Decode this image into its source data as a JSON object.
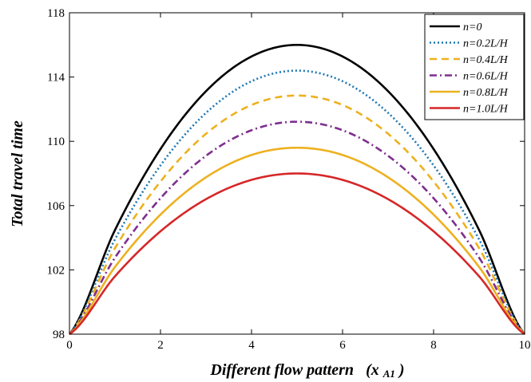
{
  "chart_data": {
    "type": "line",
    "xlabel": "Different flow pattern",
    "xlabel_var": "(x",
    "xlabel_sub": "A1",
    "xlabel_close": ")",
    "ylabel": "Total travel time",
    "xlim": [
      0,
      10
    ],
    "ylim": [
      98,
      118
    ],
    "xticks": [
      0,
      2,
      4,
      6,
      8,
      10
    ],
    "yticks": [
      98,
      102,
      106,
      110,
      114,
      118
    ],
    "grid": false,
    "legend_position": "top-right",
    "x": [
      0,
      1,
      2,
      3,
      4,
      5,
      6,
      7,
      8,
      9,
      10
    ],
    "series": [
      {
        "name": "n=0",
        "color": "#000000",
        "dash": "solid",
        "values": [
          98,
          104.48,
          109.52,
          113.12,
          115.28,
          116,
          115.28,
          113.12,
          109.52,
          104.48,
          98
        ]
      },
      {
        "name": "n=0.2L/H",
        "color": "#1f77b4",
        "dash": "dotted",
        "values": [
          98,
          103.9,
          108.5,
          111.77,
          113.74,
          114.4,
          113.74,
          111.77,
          108.5,
          103.9,
          98
        ]
      },
      {
        "name": "n=0.4L/H",
        "color": "#edb120",
        "dash": "dashed",
        "values": [
          98,
          103.35,
          107.5,
          110.47,
          112.26,
          112.85,
          112.26,
          110.47,
          107.5,
          103.35,
          98
        ]
      },
      {
        "name": "n=0.6L/H",
        "color": "#7e2f8e",
        "dash": "dashdot",
        "values": [
          98,
          102.76,
          106.46,
          109.1,
          110.69,
          111.22,
          110.69,
          109.1,
          106.46,
          102.76,
          98
        ]
      },
      {
        "name": "n=0.8L/H",
        "color": "#edb120",
        "dash": "solid",
        "values": [
          98,
          102.18,
          105.44,
          107.76,
          109.15,
          109.6,
          109.15,
          107.76,
          105.44,
          102.18,
          98
        ]
      },
      {
        "name": "n=1.0L/H",
        "color": "#d62728",
        "dash": "solid",
        "values": [
          98,
          101.6,
          104.4,
          106.4,
          107.6,
          108,
          107.6,
          106.4,
          104.4,
          101.6,
          98
        ]
      }
    ]
  }
}
